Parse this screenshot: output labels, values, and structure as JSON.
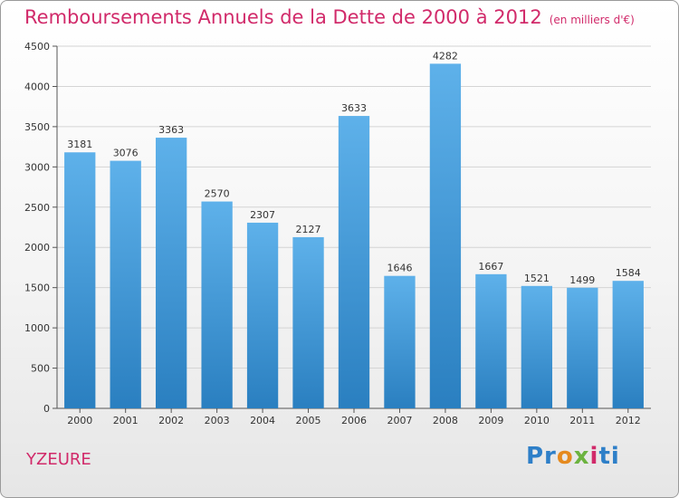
{
  "title": "Remboursements Annuels de la Dette de 2000 à 2012",
  "unit_note": "(en milliers d'€)",
  "location": "YZEURE",
  "logo": {
    "text": "Proxiti"
  },
  "colors": {
    "title": "#d12a6a",
    "bar_top": "#5eb1ea",
    "bar_bottom": "#2a7fc0"
  },
  "chart_data": {
    "type": "bar",
    "categories": [
      "2000",
      "2001",
      "2002",
      "2003",
      "2004",
      "2005",
      "2006",
      "2007",
      "2008",
      "2009",
      "2010",
      "2011",
      "2012"
    ],
    "values": [
      3181,
      3076,
      3363,
      2570,
      2307,
      2127,
      3633,
      1646,
      4282,
      1667,
      1521,
      1499,
      1584
    ],
    "ylim": [
      0,
      4500
    ],
    "yticks": [
      0,
      500,
      1000,
      1500,
      2000,
      2500,
      3000,
      3500,
      4000,
      4500
    ],
    "grid": true,
    "xlabel": "",
    "ylabel": ""
  }
}
